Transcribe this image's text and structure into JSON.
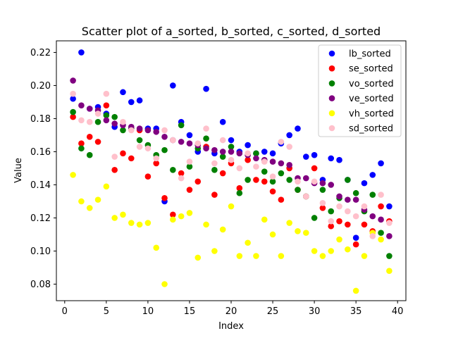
{
  "chart_data": {
    "type": "scatter",
    "title": "Scatter plot of a_sorted, b_sorted, c_sorted, d_sorted",
    "xlabel": "Index",
    "ylabel": "Value",
    "xlim": [
      -1,
      41
    ],
    "ylim": [
      0.07,
      0.227
    ],
    "xticks": [
      0,
      5,
      10,
      15,
      20,
      25,
      30,
      35,
      40
    ],
    "yticks": [
      0.08,
      0.1,
      0.12,
      0.14,
      0.16,
      0.18,
      0.2,
      0.22
    ],
    "grid": false,
    "legend_position": "top-right",
    "x": [
      1,
      2,
      3,
      4,
      5,
      6,
      7,
      8,
      9,
      10,
      11,
      12,
      13,
      14,
      15,
      16,
      17,
      18,
      19,
      20,
      21,
      22,
      23,
      24,
      25,
      26,
      27,
      28,
      29,
      30,
      31,
      32,
      33,
      34,
      35,
      36,
      37,
      38,
      39
    ],
    "series": [
      {
        "name": "lb_sorted",
        "color": "#0000ff",
        "values": [
          0.192,
          0.22,
          0.186,
          0.187,
          0.183,
          0.175,
          0.196,
          0.19,
          0.191,
          0.174,
          0.174,
          0.13,
          0.2,
          0.178,
          0.17,
          0.16,
          0.198,
          0.159,
          0.178,
          0.167,
          0.16,
          0.164,
          0.159,
          0.16,
          0.159,
          0.165,
          0.17,
          0.174,
          0.157,
          0.158,
          0.143,
          0.156,
          0.155,
          0.143,
          0.108,
          0.141,
          0.146,
          0.153,
          0.127
        ]
      },
      {
        "name": "se_sorted",
        "color": "#ff0000",
        "values": [
          0.181,
          0.165,
          0.169,
          0.166,
          0.188,
          0.149,
          0.159,
          0.156,
          0.173,
          0.145,
          0.153,
          0.132,
          0.122,
          0.147,
          0.137,
          0.142,
          0.163,
          0.134,
          0.147,
          0.153,
          0.138,
          0.155,
          0.143,
          0.142,
          0.136,
          0.131,
          0.15,
          0.137,
          0.133,
          0.15,
          0.126,
          0.115,
          0.118,
          0.116,
          0.104,
          0.116,
          0.112,
          0.127,
          0.118
        ]
      },
      {
        "name": "vo_sorted",
        "color": "#008000",
        "values": [
          0.184,
          0.162,
          0.158,
          0.178,
          0.182,
          0.181,
          0.173,
          0.174,
          0.167,
          0.164,
          0.158,
          0.161,
          0.149,
          0.176,
          0.151,
          0.162,
          0.168,
          0.149,
          0.157,
          0.163,
          0.135,
          0.143,
          0.159,
          0.148,
          0.142,
          0.147,
          0.143,
          0.137,
          0.133,
          0.12,
          0.137,
          0.124,
          0.132,
          0.143,
          0.135,
          0.124,
          0.134,
          0.111,
          0.097
        ]
      },
      {
        "name": "ve_sorted",
        "color": "#800080",
        "values": [
          0.203,
          0.188,
          0.186,
          0.185,
          0.179,
          0.177,
          0.176,
          0.175,
          0.174,
          0.173,
          0.172,
          0.169,
          0.167,
          0.166,
          0.165,
          0.164,
          0.162,
          0.161,
          0.16,
          0.16,
          0.159,
          0.158,
          0.156,
          0.155,
          0.154,
          0.153,
          0.152,
          0.144,
          0.144,
          0.141,
          0.141,
          0.14,
          0.133,
          0.131,
          0.131,
          0.125,
          0.121,
          0.119,
          0.109
        ]
      },
      {
        "name": "vh_sorted",
        "color": "#ffff00",
        "values": [
          0.146,
          0.13,
          0.126,
          0.131,
          0.139,
          0.12,
          0.122,
          0.117,
          0.116,
          0.117,
          0.102,
          0.08,
          0.119,
          0.121,
          0.123,
          0.096,
          0.116,
          0.1,
          0.113,
          0.127,
          0.097,
          0.105,
          0.097,
          0.119,
          0.11,
          0.097,
          0.117,
          0.112,
          0.111,
          0.1,
          0.097,
          0.1,
          0.107,
          0.101,
          0.076,
          0.097,
          0.111,
          0.107,
          0.088
        ]
      },
      {
        "name": "sd_sorted",
        "color": "#ffc0cb",
        "values": [
          0.195,
          0.179,
          0.178,
          0.183,
          0.195,
          0.157,
          0.178,
          0.173,
          0.163,
          0.162,
          0.156,
          0.173,
          0.167,
          0.144,
          0.154,
          0.165,
          0.174,
          0.153,
          0.167,
          0.155,
          0.15,
          0.159,
          0.151,
          0.154,
          0.145,
          0.166,
          0.163,
          0.142,
          0.133,
          0.142,
          0.129,
          0.118,
          0.127,
          0.124,
          0.121,
          0.127,
          0.109,
          0.134,
          0.117
        ]
      }
    ]
  }
}
